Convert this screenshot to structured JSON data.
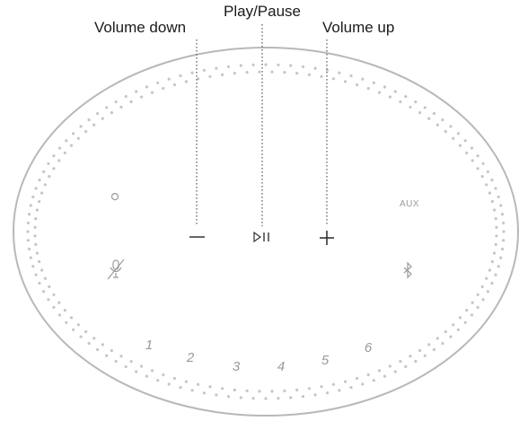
{
  "callouts": {
    "volume_down": "Volume down",
    "play_pause": "Play/Pause",
    "volume_up": "Volume up"
  },
  "buttons": {
    "volume_down_symbol": "–",
    "play_pause_symbol": "⏵II",
    "volume_up_symbol": "+",
    "aux_label": "AUX"
  },
  "presets": [
    "1",
    "2",
    "3",
    "4",
    "5",
    "6"
  ],
  "icons": {
    "action": "action-button-icon",
    "mic_off": "microphone-off-icon",
    "bluetooth": "bluetooth-icon"
  },
  "colors": {
    "outline": "#b8b8b8",
    "dots": "#c6c6c6",
    "button_glyph": "#333333",
    "faint_glyph": "#9a9a9a",
    "callout_text": "#1a1a1a"
  }
}
